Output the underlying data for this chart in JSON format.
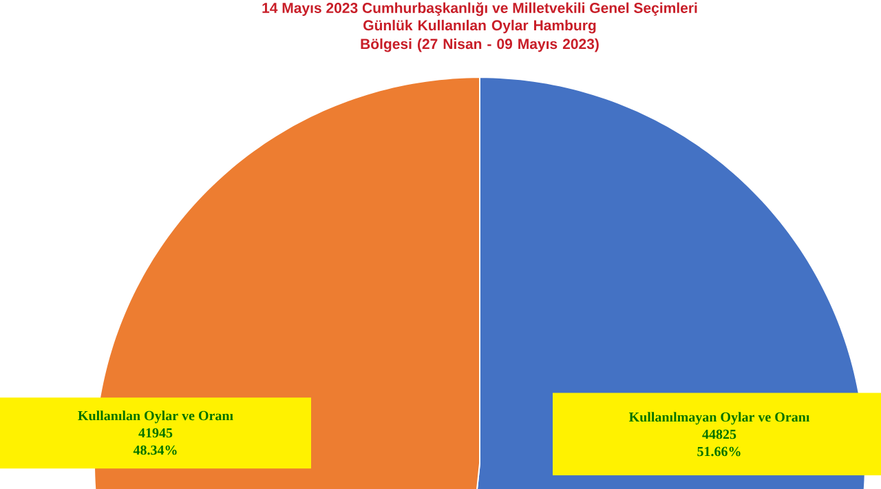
{
  "chart_data": {
    "type": "pie",
    "title": "14 Mayıs 2023 Cumhurbaşkanlığı ve Milletvekili Genel Seçimleri",
    "subtitle": "Günlük Kullanılan Oylar Hamburg Bölgesi (27 Nisan - 09 Mayıs 2023)",
    "categories": [
      "Kullanılmayan Oylar ve Oranı",
      "Kullanılan Oylar ve Oranı"
    ],
    "values": [
      44825,
      41945
    ],
    "colors": [
      "#4472c4",
      "#ed7d31"
    ],
    "data_labels": true,
    "annotations": [
      "51.66%",
      "48.34%"
    ]
  }
}
